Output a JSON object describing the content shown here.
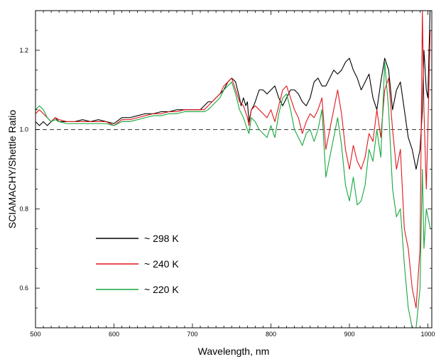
{
  "chart_data": {
    "type": "line",
    "title": "",
    "xlabel": "Wavelength, nm",
    "ylabel": "SCIAMACHY/Shettle Ratio",
    "xlim": [
      500,
      1005
    ],
    "ylim": [
      0.5,
      1.3
    ],
    "x_ticks": [
      500,
      600,
      700,
      800,
      900,
      1000
    ],
    "x_tick_labels": [
      "500",
      "600",
      "700",
      "800",
      "900",
      "1000"
    ],
    "y_ticks": [
      0.6,
      0.8,
      1.0,
      1.2
    ],
    "y_tick_labels": [
      "0.6",
      "0.8",
      "1.0",
      "1.2"
    ],
    "reference_line": {
      "y": 1.0,
      "style": "dashed"
    },
    "grid": false,
    "legend_position": "lower-left",
    "series": [
      {
        "name": "~ 298 K",
        "color": "#000000",
        "x": [
          500,
          505,
          510,
          515,
          520,
          525,
          530,
          540,
          550,
          560,
          570,
          580,
          590,
          600,
          610,
          620,
          630,
          640,
          650,
          660,
          670,
          680,
          690,
          700,
          710,
          715,
          720,
          725,
          730,
          735,
          740,
          745,
          750,
          755,
          760,
          762,
          765,
          768,
          770,
          772,
          775,
          778,
          780,
          785,
          790,
          795,
          800,
          805,
          810,
          815,
          820,
          825,
          830,
          835,
          840,
          845,
          850,
          855,
          860,
          865,
          870,
          875,
          880,
          885,
          890,
          895,
          900,
          905,
          910,
          915,
          920,
          925,
          930,
          935,
          940,
          945,
          950,
          955,
          960,
          965,
          970,
          975,
          980,
          985,
          990,
          993,
          995,
          998,
          1000,
          1003
        ],
        "y": [
          1.02,
          1.01,
          1.02,
          1.01,
          1.02,
          1.03,
          1.02,
          1.02,
          1.02,
          1.025,
          1.02,
          1.025,
          1.02,
          1.015,
          1.03,
          1.03,
          1.035,
          1.04,
          1.04,
          1.045,
          1.045,
          1.05,
          1.05,
          1.05,
          1.05,
          1.06,
          1.07,
          1.07,
          1.08,
          1.09,
          1.1,
          1.12,
          1.13,
          1.12,
          1.08,
          1.06,
          1.08,
          1.06,
          1.07,
          1.02,
          1.05,
          1.06,
          1.07,
          1.1,
          1.1,
          1.09,
          1.1,
          1.11,
          1.08,
          1.06,
          1.08,
          1.1,
          1.1,
          1.09,
          1.07,
          1.06,
          1.08,
          1.12,
          1.13,
          1.11,
          1.11,
          1.13,
          1.15,
          1.14,
          1.15,
          1.17,
          1.18,
          1.15,
          1.13,
          1.1,
          1.12,
          1.14,
          1.08,
          1.05,
          1.12,
          1.18,
          1.15,
          1.05,
          1.1,
          1.12,
          1.05,
          0.98,
          0.95,
          0.9,
          0.95,
          1.05,
          1.2,
          1.1,
          1.08,
          1.32
        ]
      },
      {
        "name": "~ 240 K",
        "color": "#e0161d",
        "x": [
          500,
          505,
          510,
          515,
          520,
          525,
          530,
          540,
          550,
          560,
          570,
          580,
          590,
          600,
          610,
          620,
          630,
          640,
          650,
          660,
          670,
          680,
          690,
          700,
          710,
          715,
          720,
          725,
          730,
          735,
          740,
          745,
          750,
          755,
          760,
          765,
          770,
          772,
          775,
          780,
          785,
          790,
          795,
          800,
          805,
          810,
          815,
          820,
          825,
          830,
          835,
          840,
          845,
          850,
          855,
          860,
          865,
          870,
          875,
          880,
          885,
          890,
          895,
          900,
          905,
          910,
          915,
          920,
          925,
          930,
          935,
          940,
          945,
          950,
          955,
          960,
          965,
          970,
          975,
          980,
          985,
          990,
          993,
          995,
          998,
          1000,
          1003
        ],
        "y": [
          1.04,
          1.05,
          1.04,
          1.03,
          1.02,
          1.03,
          1.025,
          1.02,
          1.02,
          1.02,
          1.02,
          1.02,
          1.02,
          1.01,
          1.025,
          1.025,
          1.03,
          1.035,
          1.04,
          1.04,
          1.045,
          1.045,
          1.05,
          1.05,
          1.05,
          1.05,
          1.06,
          1.07,
          1.08,
          1.09,
          1.11,
          1.12,
          1.13,
          1.1,
          1.07,
          1.06,
          1.03,
          1.01,
          1.05,
          1.06,
          1.05,
          1.04,
          1.03,
          1.05,
          1.02,
          1.06,
          1.1,
          1.11,
          1.08,
          1.05,
          1.03,
          0.99,
          1.02,
          1.04,
          1.03,
          1.05,
          1.08,
          0.95,
          1.0,
          1.05,
          1.1,
          1.04,
          0.95,
          0.9,
          0.96,
          0.92,
          0.9,
          0.93,
          0.99,
          0.97,
          1.05,
          0.98,
          1.1,
          1.13,
          1.0,
          0.9,
          0.95,
          0.75,
          0.7,
          0.6,
          0.55,
          0.7,
          1.3,
          1.05,
          0.85,
          1.0,
          1.25
        ]
      },
      {
        "name": "~ 220 K",
        "color": "#14a83c",
        "x": [
          500,
          505,
          510,
          515,
          520,
          525,
          530,
          540,
          550,
          560,
          570,
          580,
          590,
          600,
          610,
          620,
          630,
          640,
          650,
          660,
          670,
          680,
          690,
          700,
          710,
          715,
          720,
          725,
          730,
          735,
          740,
          745,
          750,
          755,
          760,
          765,
          770,
          772,
          775,
          780,
          785,
          790,
          795,
          800,
          805,
          810,
          815,
          820,
          825,
          830,
          835,
          840,
          845,
          850,
          855,
          860,
          865,
          870,
          875,
          880,
          885,
          890,
          895,
          900,
          905,
          910,
          915,
          920,
          925,
          930,
          935,
          940,
          945,
          950,
          955,
          960,
          965,
          970,
          975,
          980,
          985,
          990,
          993,
          995,
          998,
          1000,
          1003
        ],
        "y": [
          1.05,
          1.06,
          1.05,
          1.03,
          1.02,
          1.025,
          1.02,
          1.015,
          1.015,
          1.015,
          1.015,
          1.015,
          1.015,
          1.01,
          1.02,
          1.02,
          1.025,
          1.03,
          1.035,
          1.035,
          1.04,
          1.04,
          1.045,
          1.045,
          1.045,
          1.045,
          1.05,
          1.06,
          1.07,
          1.08,
          1.1,
          1.11,
          1.12,
          1.09,
          1.05,
          1.03,
          1.0,
          0.99,
          1.03,
          1.02,
          1.0,
          0.99,
          0.98,
          1.01,
          0.98,
          1.04,
          1.08,
          1.09,
          1.05,
          1.0,
          0.98,
          0.96,
          0.99,
          1.0,
          0.97,
          1.0,
          1.05,
          0.88,
          0.93,
          0.98,
          1.03,
          0.96,
          0.86,
          0.82,
          0.88,
          0.81,
          0.82,
          0.86,
          0.95,
          0.92,
          1.0,
          0.93,
          1.17,
          1.05,
          0.85,
          0.78,
          0.8,
          0.66,
          0.55,
          0.5,
          0.5,
          0.6,
          0.9,
          0.7,
          0.8,
          0.78,
          0.75
        ]
      }
    ]
  }
}
